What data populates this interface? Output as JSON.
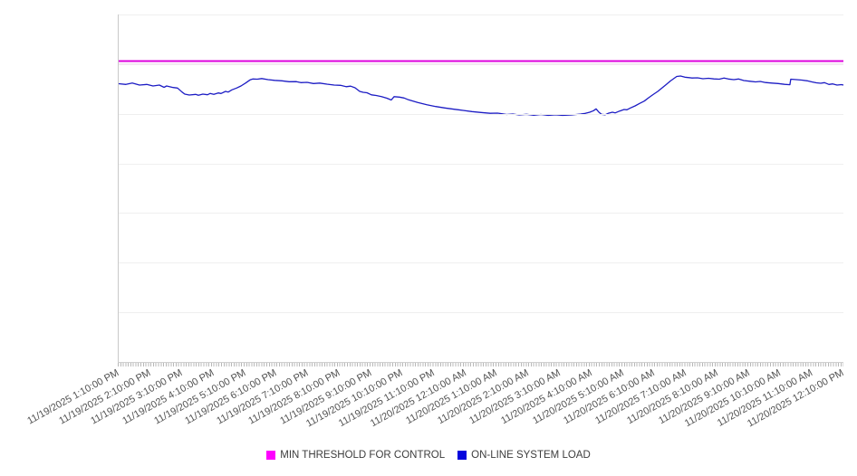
{
  "legend": {
    "items": [
      {
        "label": "MIN THRESHOLD FOR CONTROL",
        "swatch_color": "#ff00ff"
      },
      {
        "label": "ON-LINE SYSTEM LOAD",
        "swatch_color": "#0505dd"
      }
    ]
  },
  "chart_data": {
    "type": "line",
    "title": "",
    "xlabel": "",
    "ylabel": "",
    "y_axis_labels_visible": false,
    "grid": true,
    "gridline_divisions": 7,
    "legend_position": "bottom-center",
    "x_tick_labels": [
      "11/19/2025 1:10:00 PM",
      "11/19/2025 2:10:00 PM",
      "11/19/2025 3:10:00 PM",
      "11/19/2025 4:10:00 PM",
      "11/19/2025 5:10:00 PM",
      "11/19/2025 6:10:00 PM",
      "11/19/2025 7:10:00 PM",
      "11/19/2025 8:10:00 PM",
      "11/19/2025 9:10:00 PM",
      "11/19/2025 10:10:00 PM",
      "11/19/2025 11:10:00 PM",
      "11/20/2025 12:10:00 AM",
      "11/20/2025 1:10:00 AM",
      "11/20/2025 2:10:00 AM",
      "11/20/2025 3:10:00 AM",
      "11/20/2025 4:10:00 AM",
      "11/20/2025 5:10:00 AM",
      "11/20/2025 6:10:00 AM",
      "11/20/2025 7:10:00 AM",
      "11/20/2025 8:10:00 AM",
      "11/20/2025 9:10:00 AM",
      "11/20/2025 10:10:00 AM",
      "11/20/2025 11:10:00 AM",
      "11/20/2025 12:10:00 PM"
    ],
    "x_range": [
      0,
      23
    ],
    "ylim": [
      0,
      384
    ],
    "y_units_note": "relative units; chart shows no y-axis value labels",
    "series": [
      {
        "name": "MIN THRESHOLD FOR CONTROL",
        "type": "constant-threshold",
        "color": "#dd00dd",
        "halo_color": "#f0cdec",
        "value": 332.5,
        "halo_value": 329.1
      },
      {
        "name": "ON-LINE SYSTEM LOAD",
        "type": "line",
        "color": "#1c1cc4",
        "points": [
          [
            0,
            307.5
          ],
          [
            0.23,
            306.7
          ],
          [
            0.43,
            308.2
          ],
          [
            0.66,
            306
          ],
          [
            0.89,
            306.7
          ],
          [
            1.09,
            305
          ],
          [
            1.29,
            306
          ],
          [
            1.44,
            303.5
          ],
          [
            1.52,
            305
          ],
          [
            1.73,
            303.3
          ],
          [
            1.87,
            302.7
          ],
          [
            2.01,
            298.3
          ],
          [
            2.1,
            296
          ],
          [
            2.24,
            295
          ],
          [
            2.44,
            295.7
          ],
          [
            2.53,
            294.7
          ],
          [
            2.67,
            296
          ],
          [
            2.82,
            295.3
          ],
          [
            2.9,
            296.7
          ],
          [
            3.02,
            295.7
          ],
          [
            3.16,
            297.3
          ],
          [
            3.25,
            296.7
          ],
          [
            3.39,
            299
          ],
          [
            3.48,
            298.3
          ],
          [
            3.59,
            300.7
          ],
          [
            3.74,
            302.7
          ],
          [
            3.88,
            305
          ],
          [
            4.03,
            308.3
          ],
          [
            4.17,
            311.7
          ],
          [
            4.26,
            312.7
          ],
          [
            4.4,
            312.5
          ],
          [
            4.54,
            313.2
          ],
          [
            4.74,
            312
          ],
          [
            4.95,
            311.2
          ],
          [
            5.18,
            310.7
          ],
          [
            5.41,
            309.7
          ],
          [
            5.64,
            309.8
          ],
          [
            5.78,
            308.7
          ],
          [
            5.98,
            309
          ],
          [
            6.18,
            307.7
          ],
          [
            6.38,
            308.2
          ],
          [
            6.61,
            307
          ],
          [
            6.84,
            306
          ],
          [
            7.04,
            305.7
          ],
          [
            7.22,
            304.2
          ],
          [
            7.36,
            304.8
          ],
          [
            7.5,
            303
          ],
          [
            7.65,
            299
          ],
          [
            7.76,
            298
          ],
          [
            7.88,
            297.5
          ],
          [
            8.02,
            295.2
          ],
          [
            8.17,
            294.5
          ],
          [
            8.34,
            293.3
          ],
          [
            8.51,
            291.5
          ],
          [
            8.65,
            289.5
          ],
          [
            8.74,
            293.2
          ],
          [
            8.91,
            292.7
          ],
          [
            9.06,
            291.7
          ],
          [
            9.2,
            289.7
          ],
          [
            9.49,
            286.7
          ],
          [
            9.78,
            284.3
          ],
          [
            10.06,
            282.3
          ],
          [
            10.35,
            280.7
          ],
          [
            10.64,
            279.3
          ],
          [
            10.93,
            278
          ],
          [
            11.21,
            276.7
          ],
          [
            11.5,
            275.7
          ],
          [
            11.79,
            274.8
          ],
          [
            12.02,
            275
          ],
          [
            12.13,
            274.5
          ],
          [
            12.31,
            273.5
          ],
          [
            12.51,
            274
          ],
          [
            12.71,
            273
          ],
          [
            12.94,
            273.7
          ],
          [
            13.17,
            272.7
          ],
          [
            13.4,
            273.5
          ],
          [
            13.63,
            272.5
          ],
          [
            13.86,
            273.2
          ],
          [
            14.09,
            272.5
          ],
          [
            14.38,
            273
          ],
          [
            14.66,
            274
          ],
          [
            14.81,
            274.7
          ],
          [
            14.95,
            276
          ],
          [
            15.07,
            277.7
          ],
          [
            15.15,
            279.7
          ],
          [
            15.24,
            276
          ],
          [
            15.32,
            273.7
          ],
          [
            15.44,
            273.2
          ],
          [
            15.53,
            274.7
          ],
          [
            15.67,
            276
          ],
          [
            15.76,
            275.3
          ],
          [
            15.9,
            277.3
          ],
          [
            16.04,
            279
          ],
          [
            16.13,
            278.7
          ],
          [
            16.24,
            280.7
          ],
          [
            16.39,
            283
          ],
          [
            16.53,
            285.7
          ],
          [
            16.68,
            288.3
          ],
          [
            16.82,
            292
          ],
          [
            16.96,
            295.5
          ],
          [
            17.11,
            299
          ],
          [
            17.25,
            303
          ],
          [
            17.39,
            307
          ],
          [
            17.51,
            310.5
          ],
          [
            17.63,
            313.5
          ],
          [
            17.71,
            315.5
          ],
          [
            17.83,
            316
          ],
          [
            17.97,
            314.7
          ],
          [
            18.2,
            313.8
          ],
          [
            18.37,
            314
          ],
          [
            18.54,
            313
          ],
          [
            18.72,
            313.5
          ],
          [
            18.89,
            312.8
          ],
          [
            19.06,
            312.5
          ],
          [
            19.21,
            313.8
          ],
          [
            19.35,
            312.7
          ],
          [
            19.52,
            312
          ],
          [
            19.67,
            312.7
          ],
          [
            19.84,
            311
          ],
          [
            20.04,
            310.2
          ],
          [
            20.21,
            309.5
          ],
          [
            20.36,
            310
          ],
          [
            20.53,
            308.8
          ],
          [
            20.73,
            308.2
          ],
          [
            20.93,
            307.7
          ],
          [
            21.13,
            306.8
          ],
          [
            21.3,
            306.4
          ],
          [
            21.33,
            312.5
          ],
          [
            21.51,
            312
          ],
          [
            21.68,
            311.5
          ],
          [
            21.85,
            310.7
          ],
          [
            22,
            309.5
          ],
          [
            22.14,
            308.5
          ],
          [
            22.28,
            308
          ],
          [
            22.4,
            308.7
          ],
          [
            22.54,
            306.7
          ],
          [
            22.66,
            307.3
          ],
          [
            22.8,
            306
          ],
          [
            22.94,
            306.5
          ],
          [
            23,
            306
          ]
        ]
      }
    ]
  },
  "style": {
    "gridline_color": "#efefef",
    "axis_line_color": "#c9c9c9",
    "tick_color": "#b8b8b8",
    "x_label_color": "#525252"
  }
}
